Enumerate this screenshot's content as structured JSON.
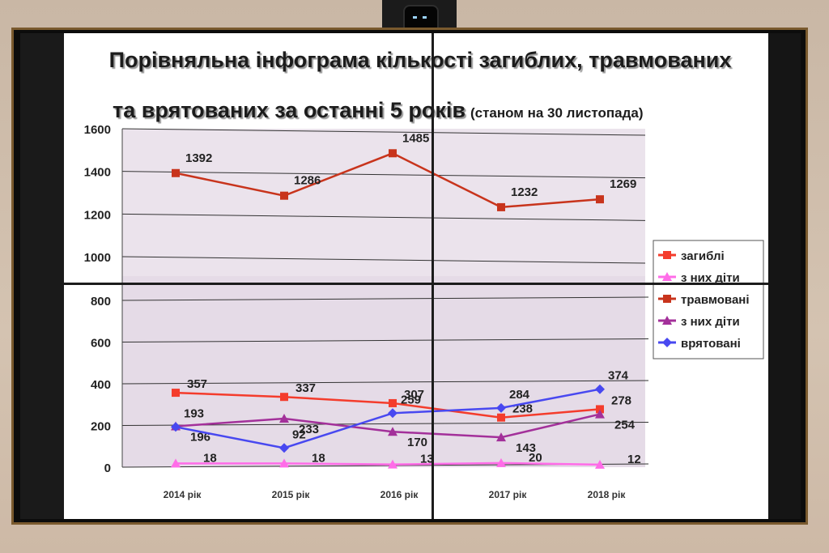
{
  "title_line1": "Порівняльна інфограма кількості загиблих, травмованих",
  "title_line2": "та врятованих за останні 5 років",
  "title_note": "(станом на 30 листопада)",
  "chart_data": {
    "type": "line",
    "categories": [
      "2014 рік",
      "2015 рік",
      "2016 рік",
      "2017 рік",
      "2018 рік"
    ],
    "upper_panel": {
      "ylim": [
        1000,
        1600
      ],
      "yticks": [
        1000,
        1200,
        1400,
        1600
      ],
      "series": [
        {
          "name": "травмовані",
          "values": [
            1392,
            1286,
            1485,
            1232,
            1269
          ],
          "labels": [
            "1392",
            "1286",
            "1485",
            "1232",
            "1269"
          ]
        }
      ]
    },
    "lower_panel": {
      "ylim": [
        0,
        800
      ],
      "yticks": [
        0,
        200,
        400,
        600,
        800
      ],
      "series": [
        {
          "name": "загиблі",
          "values": [
            357,
            337,
            307,
            238,
            278
          ],
          "labels": [
            "357",
            "337",
            "307",
            "238",
            "278"
          ]
        },
        {
          "name": "з них діти",
          "values": [
            18,
            18,
            13,
            20,
            12
          ],
          "labels": [
            "18",
            "18",
            "13",
            "20",
            "12"
          ]
        },
        {
          "name": "з них діти",
          "values": [
            196,
            233,
            170,
            143,
            254
          ],
          "labels": [
            "196",
            "233",
            "170",
            "143",
            "254"
          ]
        },
        {
          "name": "врятовані",
          "values": [
            193,
            92,
            259,
            284,
            374
          ],
          "labels": [
            "193",
            "92",
            "259",
            "284",
            "374"
          ]
        }
      ]
    },
    "legend": [
      {
        "name": "загиблі",
        "color": "#f43c2c",
        "marker": "square"
      },
      {
        "name": "з них діти",
        "color": "#ff6ce8",
        "marker": "triangle"
      },
      {
        "name": "травмовані",
        "color": "#c8341c",
        "marker": "square"
      },
      {
        "name": "з них діти",
        "color": "#a3309a",
        "marker": "triangle"
      },
      {
        "name": "врятовані",
        "color": "#4848f0",
        "marker": "diamond"
      }
    ],
    "legend_position": "right",
    "grid": true
  }
}
